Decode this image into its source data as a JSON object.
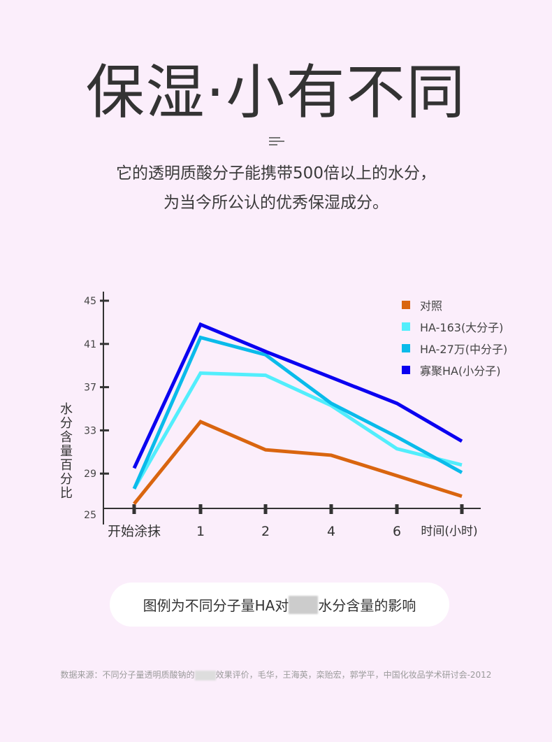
{
  "header": {
    "title": "保湿·小有不同",
    "line1": "它的透明质酸分子能携带500倍以上的水分，",
    "line2": "为当今所公认的优秀保湿成分。"
  },
  "caption": {
    "before": "图例为不同分子量HA对",
    "after": "水分含量的影响"
  },
  "footer": {
    "before": "数据来源：不同分子量透明质酸钠的",
    "after": "效果评价，毛华，王海英，栾贻宏，郭学平，中国化妆品学术研讨会-2012"
  },
  "chart_data": {
    "type": "line",
    "categories": [
      "开始涂抹",
      "1",
      "2",
      "4",
      "6",
      ""
    ],
    "xlabel": "时间(小时)",
    "ylabel": "水分含量百分比",
    "ylim": [
      25,
      45
    ],
    "yticks": [
      25,
      29,
      33,
      37,
      41,
      45
    ],
    "legend_position": "top-right",
    "series": [
      {
        "name": "对照",
        "color": "#d9650f",
        "values": [
          26.2,
          33.8,
          31.2,
          30.7,
          28.8,
          26.9
        ]
      },
      {
        "name": "HA-163(大分子)",
        "color": "#52eefc",
        "values": [
          27.6,
          38.3,
          38.1,
          35.3,
          31.3,
          29.8
        ]
      },
      {
        "name": "HA-27万(中分子)",
        "color": "#0abbea",
        "values": [
          27.6,
          41.6,
          40.0,
          35.5,
          32.4,
          29.1
        ]
      },
      {
        "name": "寡聚HA(小分子)",
        "color": "#0a00f0",
        "values": [
          29.5,
          42.8,
          40.3,
          37.9,
          35.5,
          32.0
        ]
      }
    ]
  }
}
